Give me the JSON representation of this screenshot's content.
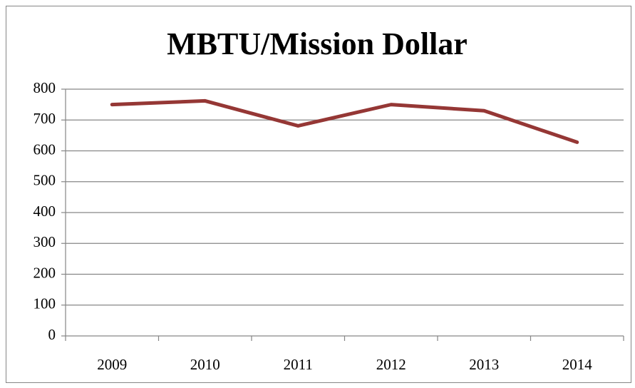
{
  "chart_data": {
    "type": "line",
    "title": "MBTU/Mission Dollar",
    "categories": [
      "2009",
      "2010",
      "2011",
      "2012",
      "2013",
      "2014"
    ],
    "values": [
      750,
      762,
      681,
      750,
      730,
      628
    ],
    "color": "#953735",
    "ylim": [
      0,
      800
    ],
    "yticks": [
      0,
      100,
      200,
      300,
      400,
      500,
      600,
      700,
      800
    ],
    "grid": true
  }
}
